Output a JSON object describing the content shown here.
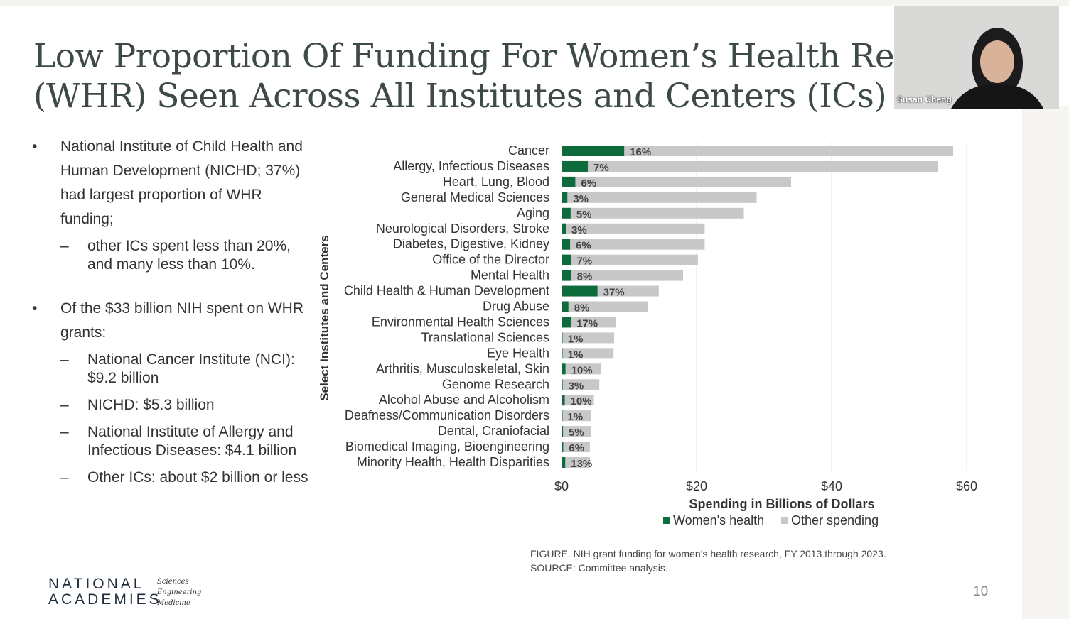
{
  "slide": {
    "title_line1": "Low Proportion Of Funding For Women’s Health Rese",
    "title_line2": "(WHR) Seen Across All Institutes and Centers (ICs)",
    "bullets": [
      {
        "text": "National Institute of Child Health and Human Development (NICHD; 37%) had largest proportion of WHR funding;",
        "subs": [
          "other ICs spent less than 20%, and many less than 10%."
        ]
      },
      {
        "text": "Of the $33 billion NIH spent on WHR grants:",
        "subs": [
          "National Cancer Institute (NCI): $9.2 billion",
          "NICHD: $5.3 billion",
          "National Institute of Allergy and Infectious Diseases: $4.1 billion",
          "Other ICs: about $2 billion or less"
        ]
      }
    ],
    "caption_line1": "FIGURE. NIH grant funding for women’s health research, FY 2013 through 2023.",
    "caption_line2": "SOURCE: Committee analysis.",
    "logo_main1": "NATIONAL",
    "logo_main2": "ACADEMIES",
    "logo_sub": [
      "Sciences",
      "Engineering",
      "Medicine"
    ],
    "page_number": "10"
  },
  "video": {
    "participant_name": "Susan Cheng"
  },
  "colors": {
    "womens": "#0e6b3b",
    "other": "#c8c8c8"
  },
  "chart_data": {
    "type": "bar",
    "orientation": "horizontal",
    "stacked": true,
    "xlabel": "Spending in Billions of Dollars",
    "ylabel": "Select Institutes and Centers",
    "xlim": [
      0,
      60
    ],
    "xticks": [
      0,
      20,
      40,
      60
    ],
    "xtick_labels": [
      "$0",
      "$20",
      "$40",
      "$60"
    ],
    "legend": [
      "Women's health",
      "Other spending"
    ],
    "legend_position": "bottom",
    "categories": [
      "Cancer",
      "Allergy, Infectious Diseases",
      "Heart, Lung, Blood",
      "General Medical Sciences",
      "Aging",
      "Neurological Disorders, Stroke",
      "Diabetes, Digestive, Kidney",
      "Office of the Director",
      "Mental Health",
      "Child Health & Human Development",
      "Drug Abuse",
      "Environmental Health Sciences",
      "Translational Sciences",
      "Eye Health",
      "Arthritis, Musculoskeletal, Skin",
      "Genome Research",
      "Alcohol Abuse and Alcoholism",
      "Deafness/Communication Disorders",
      "Dental, Craniofacial",
      "Biomedical Imaging, Bioengineering",
      "Minority Health, Health Disparities"
    ],
    "totals": [
      58.0,
      55.7,
      34.0,
      28.9,
      27.0,
      21.2,
      21.2,
      20.2,
      18.0,
      14.4,
      12.8,
      8.1,
      7.8,
      7.7,
      5.9,
      5.6,
      4.8,
      4.4,
      4.4,
      4.2,
      4.2
    ],
    "womens_pct": [
      16,
      7,
      6,
      3,
      5,
      3,
      6,
      7,
      8,
      37,
      8,
      17,
      1,
      1,
      10,
      3,
      10,
      1,
      5,
      6,
      13
    ],
    "data_labels": [
      "16%",
      "7%",
      "6%",
      "3%",
      "5%",
      "3%",
      "6%",
      "7%",
      "8%",
      "37%",
      "8%",
      "17%",
      "1%",
      "1%",
      "10%",
      "3%",
      "10%",
      "1%",
      "5%",
      "6%",
      "13%"
    ]
  }
}
